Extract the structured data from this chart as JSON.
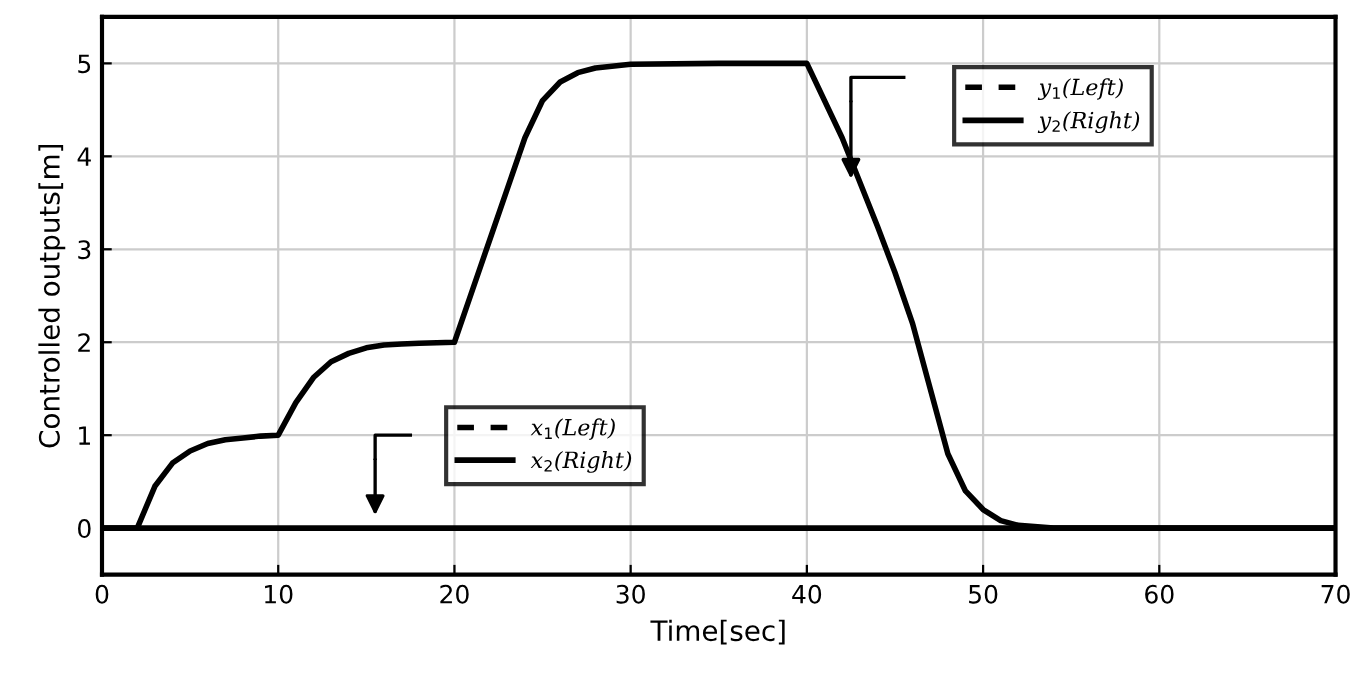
{
  "chart_data": {
    "type": "line",
    "xlabel": "Time[sec]",
    "ylabel": "Controlled outputs[m]",
    "xlim": [
      0,
      70
    ],
    "xticks": [
      0,
      10,
      20,
      30,
      40,
      50,
      60,
      70
    ],
    "ylim": [
      -0.5,
      5.5
    ],
    "yticks": [
      0,
      1,
      2,
      3,
      4,
      5
    ],
    "grid": true,
    "legend": "top right",
    "marker": "none",
    "series": [
      {
        "name": "y$_{1}$(Left)",
        "color": "#000000",
        "line_style": "dashed"
      },
      {
        "name": "y$_{2}$(Right)",
        "color": "#000000",
        "line_style": "solid",
        "x": [
          0,
          2,
          3,
          4,
          5,
          6,
          7,
          8,
          9,
          10,
          11,
          12,
          13,
          14,
          15,
          16,
          17,
          18,
          20,
          21,
          22,
          23,
          24,
          25,
          26,
          27,
          28,
          30,
          35,
          40,
          42,
          44,
          45,
          46,
          47,
          48,
          49,
          50,
          51,
          52,
          54,
          60,
          70
        ],
        "values": [
          0,
          0,
          0.45,
          0.7,
          0.83,
          0.91,
          0.95,
          0.97,
          0.99,
          1.0,
          1.35,
          1.62,
          1.79,
          1.88,
          1.94,
          1.97,
          1.98,
          1.99,
          2.0,
          2.55,
          3.1,
          3.65,
          4.2,
          4.6,
          4.8,
          4.9,
          4.95,
          4.99,
          5,
          5,
          4.2,
          3.25,
          2.75,
          2.2,
          1.5,
          0.8,
          0.4,
          0.2,
          0.08,
          0.03,
          0,
          0,
          0
        ]
      },
      {
        "name": "x$_{1}$(Left)",
        "color": "#000000",
        "line_style": "dashed"
      },
      {
        "name": "x$_{2}$(Right)",
        "color": "#000000",
        "line_style": "solid",
        "x": [
          0,
          70
        ],
        "values": [
          0,
          0
        ]
      }
    ]
  }
}
